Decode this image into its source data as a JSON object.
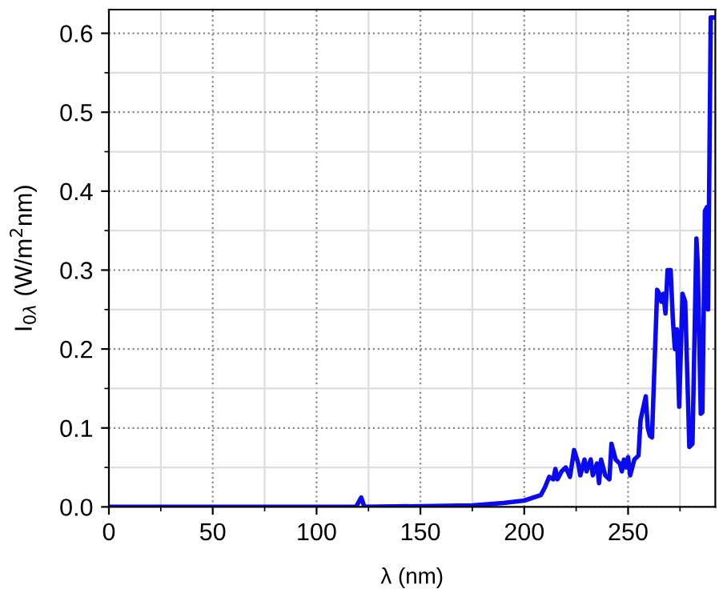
{
  "chart_data": {
    "type": "line",
    "xlabel": "λ (nm)",
    "ylabel": "I$_{0λ}$ (W/m$^{2}$nm)",
    "xlim": [
      0,
      292
    ],
    "ylim": [
      0,
      0.63
    ],
    "xticks": [
      0,
      50,
      100,
      150,
      200,
      250
    ],
    "yticks": [
      {
        "value": 0,
        "label": "0.0"
      },
      0.1,
      0.2,
      0.3,
      0.4,
      0.5,
      0.6
    ],
    "grid": true,
    "marker": "none",
    "line_style": "solid",
    "series": [
      {
        "color": "#0a0af0",
        "x": [
          0,
          115,
          119,
          121.5,
          123,
          150,
          175,
          190,
          200,
          208,
          210,
          212,
          214,
          215,
          216,
          218,
          220,
          222,
          224,
          226,
          227,
          229,
          230,
          232,
          233,
          235,
          236,
          237,
          239,
          241,
          242,
          244,
          246,
          247,
          248,
          249,
          250,
          251,
          253,
          255,
          256,
          258.5,
          259.5,
          260.5,
          261.5,
          264,
          265,
          266,
          267,
          268,
          269,
          270.5,
          271.5,
          272.5,
          273.5,
          274.6,
          276.2,
          277.5,
          279.5,
          281,
          282.9,
          283.5,
          285,
          285.8,
          287,
          288,
          288.5,
          289.8,
          291
        ],
        "values": [
          0,
          0,
          0,
          0.012,
          0,
          0.001,
          0.002,
          0.005,
          0.008,
          0.015,
          0.025,
          0.038,
          0.035,
          0.048,
          0.035,
          0.045,
          0.05,
          0.038,
          0.072,
          0.055,
          0.04,
          0.06,
          0.045,
          0.06,
          0.04,
          0.055,
          0.03,
          0.06,
          0.04,
          0.035,
          0.08,
          0.06,
          0.055,
          0.045,
          0.06,
          0.05,
          0.063,
          0.04,
          0.06,
          0.065,
          0.11,
          0.14,
          0.1,
          0.09,
          0.088,
          0.275,
          0.27,
          0.26,
          0.27,
          0.245,
          0.3,
          0.3,
          0.24,
          0.2,
          0.225,
          0.127,
          0.27,
          0.26,
          0.076,
          0.08,
          0.34,
          0.31,
          0.118,
          0.12,
          0.375,
          0.38,
          0.25,
          0.62,
          0.62
        ]
      }
    ]
  }
}
